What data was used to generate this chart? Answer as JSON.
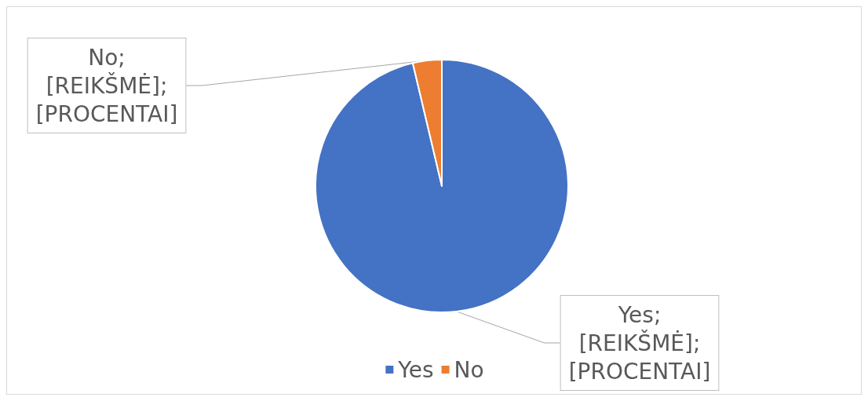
{
  "chart_data": {
    "type": "pie",
    "categories": [
      "Yes",
      "No"
    ],
    "values": [
      96.3,
      3.7
    ],
    "colors": [
      "#4472c4",
      "#ed7d31"
    ],
    "value_labels": [
      "Yes; [REIKŠMĖ]; [PROCENTAI]",
      "No; [REIKŠMĖ]; [PROCENTAI]"
    ],
    "legend": "bottom"
  }
}
